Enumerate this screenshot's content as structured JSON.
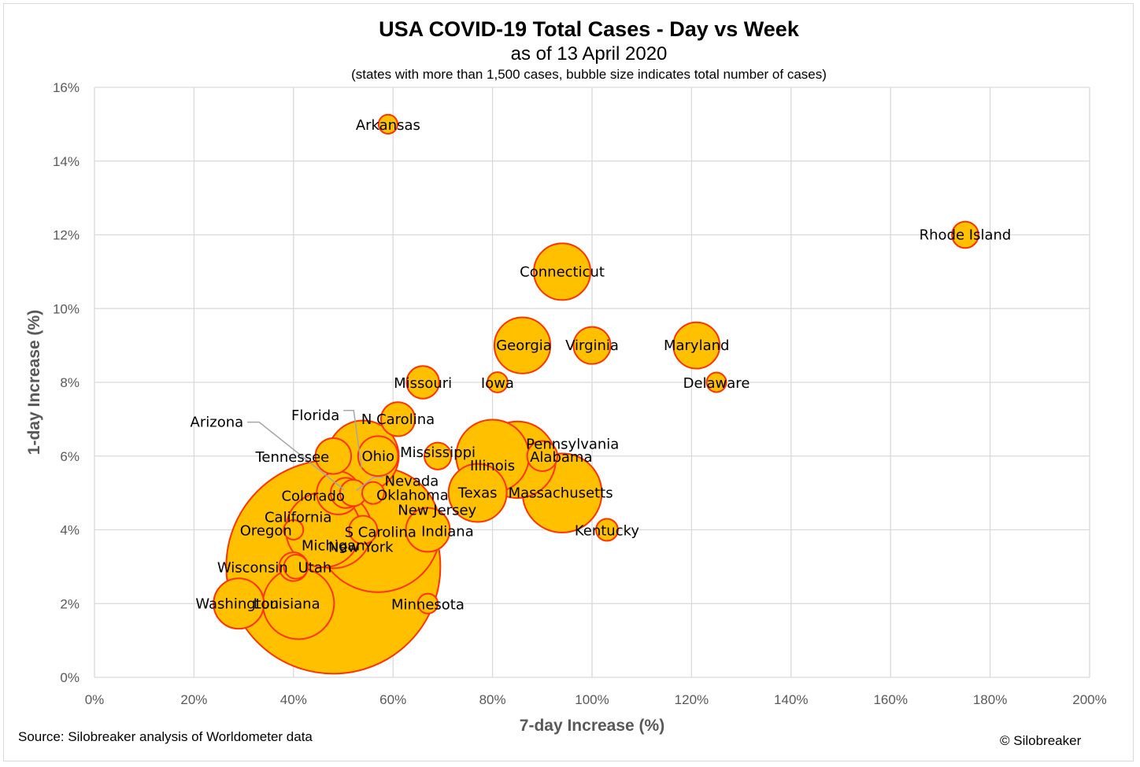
{
  "chart_data": {
    "type": "scatter",
    "bubble": true,
    "title": "USA COVID-19 Total Cases - Day vs Week",
    "subtitle": "as of 13 April 2020",
    "note": "(states with more than 1,500 cases, bubble size indicates total number of cases)",
    "xlabel": "7-day Increase (%)",
    "ylabel": "1-day Increase (%)",
    "xlim": [
      0,
      200
    ],
    "ylim": [
      0,
      16
    ],
    "xticks": [
      0,
      20,
      40,
      60,
      80,
      100,
      120,
      140,
      160,
      180,
      200
    ],
    "yticks": [
      0,
      2,
      4,
      6,
      8,
      10,
      12,
      14,
      16
    ],
    "xtick_labels": [
      "0%",
      "20%",
      "40%",
      "60%",
      "80%",
      "100%",
      "120%",
      "140%",
      "160%",
      "180%",
      "200%"
    ],
    "ytick_labels": [
      "0%",
      "2%",
      "4%",
      "6%",
      "8%",
      "10%",
      "12%",
      "14%",
      "16%"
    ],
    "grid": true,
    "colors": {
      "fill": "#FFC000",
      "stroke": "#FF3300",
      "grid": "#d9d9d9",
      "leader": "#a6a6a6"
    },
    "points": [
      {
        "name": "New York",
        "x": 48,
        "y": 3,
        "size": 190000
      },
      {
        "name": "New Jersey",
        "x": 57,
        "y": 4,
        "size": 64500
      },
      {
        "name": "Michigan",
        "x": 48,
        "y": 4,
        "size": 24600
      },
      {
        "name": "California",
        "x": 46,
        "y": 4,
        "size": 23300
      },
      {
        "name": "Massachusetts",
        "x": 94,
        "y": 5,
        "size": 26000
      },
      {
        "name": "Pennsylvania",
        "x": 85,
        "y": 5.9,
        "size": 24300
      },
      {
        "name": "Louisiana",
        "x": 41,
        "y": 2,
        "size": 21000
      },
      {
        "name": "Illinois",
        "x": 80,
        "y": 6,
        "size": 22000
      },
      {
        "name": "Florida",
        "x": 54,
        "y": 6,
        "size": 21000
      },
      {
        "name": "Texas",
        "x": 77,
        "y": 5,
        "size": 14000
      },
      {
        "name": "Georgia",
        "x": 86,
        "y": 9,
        "size": 13000
      },
      {
        "name": "Connecticut",
        "x": 94,
        "y": 11,
        "size": 13300
      },
      {
        "name": "Washington",
        "x": 29,
        "y": 2,
        "size": 10500
      },
      {
        "name": "Maryland",
        "x": 121,
        "y": 9,
        "size": 8900
      },
      {
        "name": "Indiana",
        "x": 67,
        "y": 4,
        "size": 8000
      },
      {
        "name": "Ohio",
        "x": 57,
        "y": 6,
        "size": 6600
      },
      {
        "name": "Colorado",
        "x": 49,
        "y": 5,
        "size": 7700
      },
      {
        "name": "Tennessee",
        "x": 48,
        "y": 6,
        "size": 5300
      },
      {
        "name": "Virginia",
        "x": 100,
        "y": 9,
        "size": 5700
      },
      {
        "name": "N Carolina",
        "x": 61,
        "y": 7,
        "size": 4800
      },
      {
        "name": "Missouri",
        "x": 66,
        "y": 8,
        "size": 4400
      },
      {
        "name": "Arizona",
        "x": 50.5,
        "y": 5,
        "size": 3800
      },
      {
        "name": "S Carolina",
        "x": 54,
        "y": 4,
        "size": 3300
      },
      {
        "name": "Wisconsin",
        "x": 40,
        "y": 3,
        "size": 3400
      },
      {
        "name": "Alabama",
        "x": 90,
        "y": 6,
        "size": 3800
      },
      {
        "name": "Mississippi",
        "x": 69,
        "y": 6,
        "size": 3000
      },
      {
        "name": "Nevada",
        "x": 52,
        "y": 5,
        "size": 2900
      },
      {
        "name": "Rhode Island",
        "x": 175,
        "y": 12,
        "size": 2900
      },
      {
        "name": "Utah",
        "x": 40.5,
        "y": 3,
        "size": 2400
      },
      {
        "name": "Oklahoma",
        "x": 56,
        "y": 5,
        "size": 2000
      },
      {
        "name": "Kentucky",
        "x": 103,
        "y": 4,
        "size": 2000
      },
      {
        "name": "Delaware",
        "x": 125,
        "y": 8,
        "size": 1600
      },
      {
        "name": "Iowa",
        "x": 81,
        "y": 8,
        "size": 1700
      },
      {
        "name": "Minnesota",
        "x": 67,
        "y": 2,
        "size": 1650
      },
      {
        "name": "Oregon",
        "x": 40,
        "y": 4,
        "size": 1600
      },
      {
        "name": "Arkansas",
        "x": 59,
        "y": 15,
        "size": 1500
      }
    ]
  },
  "footer": {
    "source": "Source: Silobreaker analysis of Worldometer data",
    "copyright": "© Silobreaker"
  }
}
